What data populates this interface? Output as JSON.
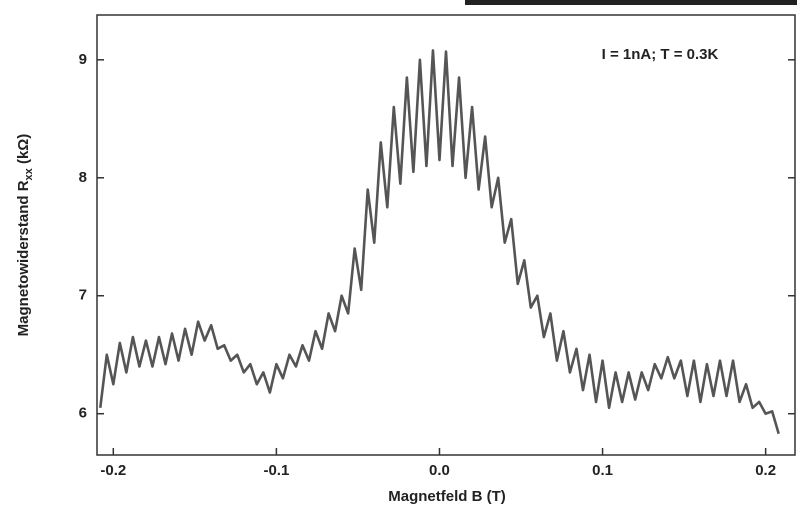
{
  "chart_data": {
    "type": "line",
    "xlabel": "Magnetfeld  B (T)",
    "ylabel": [
      "Magnetowiderstand  R",
      "xx",
      " (kΩ)"
    ],
    "annotation": "I = 1nA; T = 0.3K",
    "xlim": [
      -0.21,
      0.218
    ],
    "ylim": [
      5.65,
      9.38
    ],
    "xticks": [
      -0.2,
      -0.1,
      {
        "value": 0,
        "label": "0.0"
      },
      0.1,
      0.2
    ],
    "yticks": [
      6,
      7,
      8,
      9
    ],
    "color": "#555555",
    "x": [
      -0.208,
      -0.204,
      -0.2,
      -0.196,
      -0.192,
      -0.188,
      -0.184,
      -0.18,
      -0.176,
      -0.172,
      -0.168,
      -0.164,
      -0.16,
      -0.156,
      -0.152,
      -0.148,
      -0.144,
      -0.14,
      -0.136,
      -0.132,
      -0.128,
      -0.124,
      -0.12,
      -0.116,
      -0.112,
      -0.108,
      -0.104,
      -0.1,
      -0.096,
      -0.092,
      -0.088,
      -0.084,
      -0.08,
      -0.076,
      -0.072,
      -0.068,
      -0.064,
      -0.06,
      -0.056,
      -0.052,
      -0.048,
      -0.044,
      -0.04,
      -0.036,
      -0.032,
      -0.028,
      -0.024,
      -0.02,
      -0.016,
      -0.012,
      -0.008,
      -0.004,
      0,
      0.004,
      0.008,
      0.012,
      0.016,
      0.02,
      0.024,
      0.028,
      0.032,
      0.036,
      0.04,
      0.044,
      0.048,
      0.052,
      0.056,
      0.06,
      0.064,
      0.068,
      0.072,
      0.076,
      0.08,
      0.084,
      0.088,
      0.092,
      0.096,
      0.1,
      0.104,
      0.108,
      0.112,
      0.116,
      0.12,
      0.124,
      0.128,
      0.132,
      0.136,
      0.14,
      0.144,
      0.148,
      0.152,
      0.156,
      0.16,
      0.164,
      0.168,
      0.172,
      0.176,
      0.18,
      0.184,
      0.188,
      0.192,
      0.196,
      0.2,
      0.204,
      0.208
    ],
    "values": [
      6.05,
      6.5,
      6.25,
      6.6,
      6.35,
      6.65,
      6.4,
      6.62,
      6.4,
      6.65,
      6.42,
      6.68,
      6.45,
      6.72,
      6.5,
      6.78,
      6.62,
      6.75,
      6.55,
      6.58,
      6.45,
      6.5,
      6.35,
      6.42,
      6.25,
      6.35,
      6.18,
      6.42,
      6.3,
      6.5,
      6.4,
      6.58,
      6.45,
      6.7,
      6.55,
      6.85,
      6.7,
      7.0,
      6.85,
      7.4,
      7.05,
      7.9,
      7.45,
      8.3,
      7.75,
      8.6,
      7.95,
      8.85,
      8.05,
      9.0,
      8.1,
      9.08,
      8.15,
      9.07,
      8.1,
      8.85,
      8.0,
      8.6,
      7.9,
      8.35,
      7.75,
      8.0,
      7.45,
      7.65,
      7.1,
      7.3,
      6.9,
      7.0,
      6.65,
      6.85,
      6.45,
      6.7,
      6.35,
      6.55,
      6.2,
      6.5,
      6.1,
      6.45,
      6.05,
      6.35,
      6.1,
      6.35,
      6.12,
      6.35,
      6.2,
      6.42,
      6.3,
      6.48,
      6.3,
      6.45,
      6.15,
      6.45,
      6.1,
      6.42,
      6.15,
      6.45,
      6.15,
      6.45,
      6.1,
      6.25,
      6.05,
      6.1,
      6.0,
      6.02,
      5.83
    ]
  }
}
